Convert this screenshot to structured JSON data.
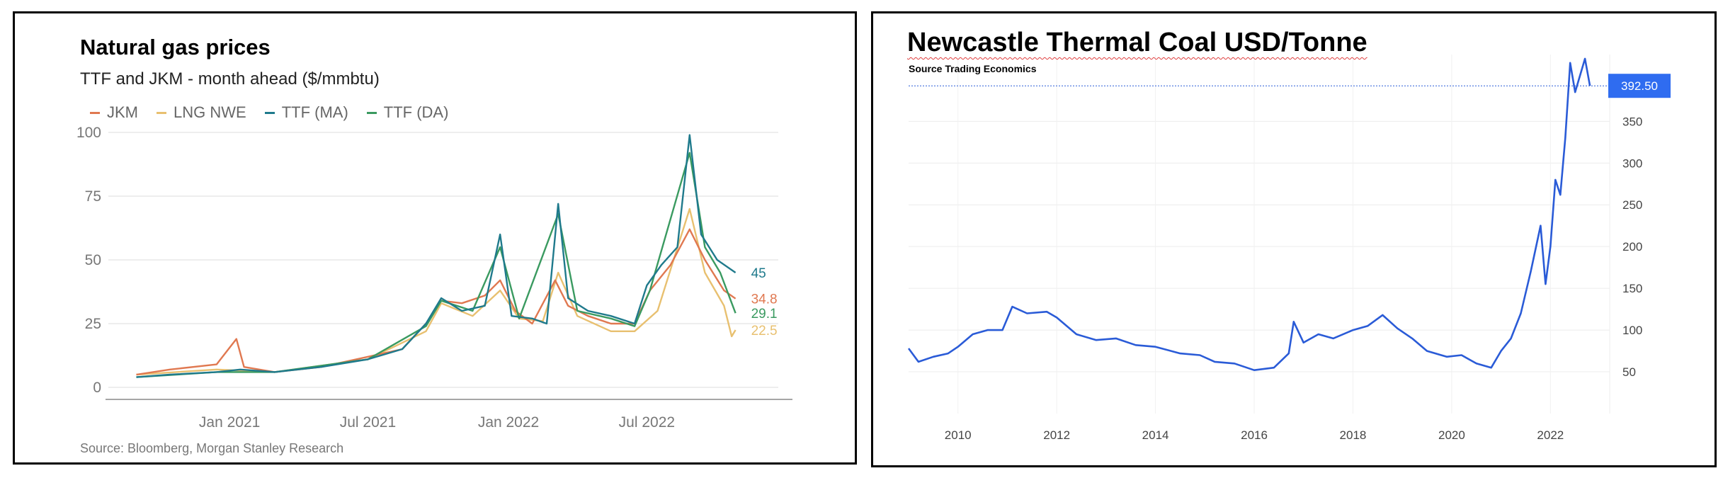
{
  "chart_data": [
    {
      "type": "line",
      "title": "Natural gas prices",
      "subtitle": "TTF and JKM - month ahead ($/mmbtu)",
      "source": "Source: Bloomberg, Morgan Stanley Research",
      "legend_position": "top-left",
      "ylim": [
        0,
        100
      ],
      "yticks": [
        "0",
        "25",
        "50",
        "75",
        "100"
      ],
      "xlim": [
        "2020-08-01",
        "2022-12-20"
      ],
      "xticks": [
        {
          "x": "2021-01-01",
          "label": "Jan 2021"
        },
        {
          "x": "2021-07-01",
          "label": "Jul 2021"
        },
        {
          "x": "2022-01-01",
          "label": "Jan 2022"
        },
        {
          "x": "2022-07-01",
          "label": "Jul 2022"
        }
      ],
      "grid": true,
      "series": [
        {
          "name": "JKM",
          "color": "#e07850",
          "end_label": "34.8",
          "points": [
            [
              "2020-09-01",
              5
            ],
            [
              "2020-10-15",
              7
            ],
            [
              "2020-12-15",
              9
            ],
            [
              "2021-01-10",
              19
            ],
            [
              "2021-01-20",
              8
            ],
            [
              "2021-03-01",
              6
            ],
            [
              "2021-05-01",
              8
            ],
            [
              "2021-07-01",
              12
            ],
            [
              "2021-08-15",
              15
            ],
            [
              "2021-09-15",
              25
            ],
            [
              "2021-10-05",
              34
            ],
            [
              "2021-11-01",
              33
            ],
            [
              "2021-12-01",
              36
            ],
            [
              "2021-12-21",
              42
            ],
            [
              "2022-01-10",
              30
            ],
            [
              "2022-02-01",
              25
            ],
            [
              "2022-03-03",
              42
            ],
            [
              "2022-03-20",
              32
            ],
            [
              "2022-04-15",
              28
            ],
            [
              "2022-05-15",
              25
            ],
            [
              "2022-06-15",
              25
            ],
            [
              "2022-07-05",
              38
            ],
            [
              "2022-08-01",
              48
            ],
            [
              "2022-08-26",
              62
            ],
            [
              "2022-09-15",
              50
            ],
            [
              "2022-10-10",
              38
            ],
            [
              "2022-10-25",
              34.8
            ]
          ]
        },
        {
          "name": "LNG NWE",
          "color": "#e8c070",
          "end_label": "22.5",
          "points": [
            [
              "2020-09-01",
              5
            ],
            [
              "2020-12-15",
              7
            ],
            [
              "2021-03-01",
              6
            ],
            [
              "2021-07-01",
              11
            ],
            [
              "2021-09-15",
              22
            ],
            [
              "2021-10-05",
              33
            ],
            [
              "2021-11-15",
              28
            ],
            [
              "2021-12-21",
              38
            ],
            [
              "2022-01-15",
              27
            ],
            [
              "2022-02-15",
              26
            ],
            [
              "2022-03-07",
              45
            ],
            [
              "2022-04-01",
              28
            ],
            [
              "2022-05-15",
              22
            ],
            [
              "2022-06-15",
              22
            ],
            [
              "2022-07-15",
              30
            ],
            [
              "2022-08-26",
              70
            ],
            [
              "2022-09-15",
              45
            ],
            [
              "2022-10-10",
              32
            ],
            [
              "2022-10-20",
              20
            ],
            [
              "2022-10-25",
              22.5
            ]
          ]
        },
        {
          "name": "TTF (MA)",
          "color": "#1f7a8c",
          "end_label": "45",
          "points": [
            [
              "2020-09-01",
              4
            ],
            [
              "2020-10-15",
              5
            ],
            [
              "2020-12-15",
              6
            ],
            [
              "2021-01-15",
              7
            ],
            [
              "2021-03-01",
              6
            ],
            [
              "2021-05-01",
              8
            ],
            [
              "2021-07-01",
              11
            ],
            [
              "2021-08-15",
              15
            ],
            [
              "2021-09-15",
              25
            ],
            [
              "2021-10-05",
              35
            ],
            [
              "2021-11-01",
              30
            ],
            [
              "2021-12-01",
              32
            ],
            [
              "2021-12-21",
              60
            ],
            [
              "2022-01-05",
              28
            ],
            [
              "2022-02-01",
              27
            ],
            [
              "2022-02-20",
              25
            ],
            [
              "2022-03-07",
              72
            ],
            [
              "2022-03-20",
              35
            ],
            [
              "2022-04-15",
              30
            ],
            [
              "2022-05-15",
              28
            ],
            [
              "2022-06-15",
              25
            ],
            [
              "2022-07-01",
              40
            ],
            [
              "2022-07-20",
              48
            ],
            [
              "2022-08-10",
              55
            ],
            [
              "2022-08-26",
              99
            ],
            [
              "2022-09-10",
              60
            ],
            [
              "2022-10-01",
              50
            ],
            [
              "2022-10-25",
              45
            ]
          ]
        },
        {
          "name": "TTF (DA)",
          "color": "#3a9a60",
          "end_label": "29.1",
          "points": [
            [
              "2020-09-01",
              4
            ],
            [
              "2020-12-15",
              6
            ],
            [
              "2021-03-01",
              6
            ],
            [
              "2021-07-01",
              11
            ],
            [
              "2021-09-15",
              24
            ],
            [
              "2021-10-05",
              34
            ],
            [
              "2021-11-15",
              30
            ],
            [
              "2021-12-21",
              55
            ],
            [
              "2022-01-15",
              27
            ],
            [
              "2022-03-07",
              68
            ],
            [
              "2022-04-01",
              30
            ],
            [
              "2022-05-15",
              27
            ],
            [
              "2022-06-15",
              24
            ],
            [
              "2022-07-05",
              38
            ],
            [
              "2022-08-26",
              92
            ],
            [
              "2022-09-15",
              55
            ],
            [
              "2022-10-05",
              45
            ],
            [
              "2022-10-25",
              29.1
            ]
          ]
        }
      ]
    },
    {
      "type": "line",
      "title": "Newcastle Thermal Coal USD/Tonne",
      "source": "Source Trading Economics",
      "ylim": [
        0,
        430
      ],
      "yticks": [
        "50",
        "100",
        "150",
        "200",
        "250",
        "300",
        "350"
      ],
      "xlim": [
        2009.0,
        2023.2
      ],
      "xticks": [
        "2010",
        "2012",
        "2014",
        "2016",
        "2018",
        "2020",
        "2022"
      ],
      "grid": true,
      "last_value": "392.50",
      "series": [
        {
          "color": "#2a5bd7",
          "points": [
            [
              2009.0,
              78
            ],
            [
              2009.2,
              62
            ],
            [
              2009.5,
              68
            ],
            [
              2009.8,
              72
            ],
            [
              2010.0,
              80
            ],
            [
              2010.3,
              95
            ],
            [
              2010.6,
              100
            ],
            [
              2010.9,
              100
            ],
            [
              2011.1,
              128
            ],
            [
              2011.4,
              120
            ],
            [
              2011.8,
              122
            ],
            [
              2012.0,
              115
            ],
            [
              2012.4,
              95
            ],
            [
              2012.8,
              88
            ],
            [
              2013.2,
              90
            ],
            [
              2013.6,
              82
            ],
            [
              2014.0,
              80
            ],
            [
              2014.5,
              72
            ],
            [
              2014.9,
              70
            ],
            [
              2015.2,
              62
            ],
            [
              2015.6,
              60
            ],
            [
              2016.0,
              52
            ],
            [
              2016.4,
              55
            ],
            [
              2016.7,
              72
            ],
            [
              2016.8,
              110
            ],
            [
              2017.0,
              85
            ],
            [
              2017.3,
              95
            ],
            [
              2017.6,
              90
            ],
            [
              2018.0,
              100
            ],
            [
              2018.3,
              105
            ],
            [
              2018.6,
              118
            ],
            [
              2018.9,
              102
            ],
            [
              2019.2,
              90
            ],
            [
              2019.5,
              75
            ],
            [
              2019.9,
              68
            ],
            [
              2020.2,
              70
            ],
            [
              2020.5,
              60
            ],
            [
              2020.8,
              55
            ],
            [
              2021.0,
              75
            ],
            [
              2021.2,
              90
            ],
            [
              2021.4,
              120
            ],
            [
              2021.6,
              170
            ],
            [
              2021.8,
              225
            ],
            [
              2021.9,
              155
            ],
            [
              2022.0,
              200
            ],
            [
              2022.1,
              280
            ],
            [
              2022.2,
              262
            ],
            [
              2022.3,
              330
            ],
            [
              2022.4,
              420
            ],
            [
              2022.5,
              385
            ],
            [
              2022.7,
              425
            ],
            [
              2022.8,
              392.5
            ]
          ]
        }
      ]
    }
  ]
}
